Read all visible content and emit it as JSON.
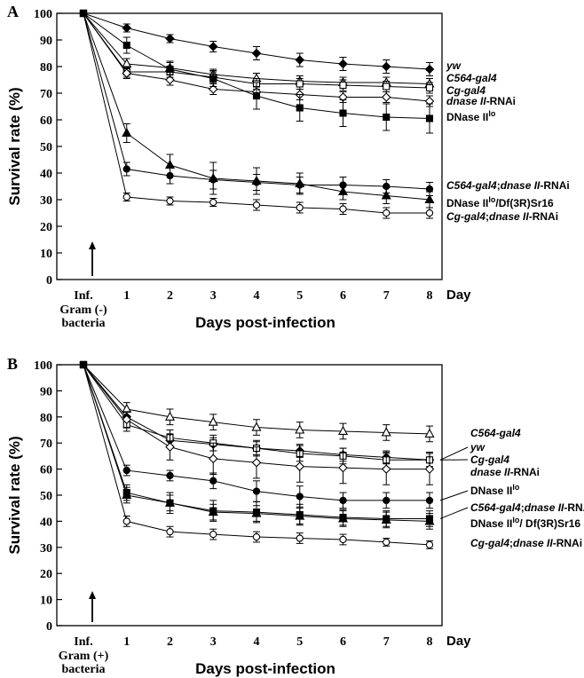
{
  "figure": {
    "panels": [
      {
        "letter": "A",
        "xlabel": "Days post-infection",
        "ylabel": "Survival rate (%)",
        "day_label": "Day",
        "inf_label": "Inf.",
        "bacteria_label": [
          "Gram (-)",
          "bacteria"
        ]
      },
      {
        "letter": "B",
        "xlabel": "Days post-infection",
        "ylabel": "Survival rate (%)",
        "day_label": "Day",
        "inf_label": "Inf.",
        "bacteria_label": [
          "Gram (+)",
          "bacteria"
        ]
      }
    ]
  },
  "chart_data": [
    {
      "type": "line",
      "panel": "A",
      "title": "",
      "xlabel": "Days post-infection",
      "ylabel": "Survival rate (%)",
      "x": [
        0,
        1,
        2,
        3,
        4,
        5,
        6,
        7,
        8
      ],
      "x_tick_labels": [
        "Inf.",
        "1",
        "2",
        "3",
        "4",
        "5",
        "6",
        "7",
        "8"
      ],
      "ylim": [
        0,
        100
      ],
      "y_ticks": [
        0,
        10,
        20,
        30,
        40,
        50,
        60,
        70,
        80,
        90,
        100
      ],
      "grid": false,
      "legend": "right-side labels",
      "series": [
        {
          "name": "yw",
          "label_parts": [
            {
              "t": "yw",
              "i": true
            }
          ],
          "marker": "diamond",
          "fill": "filled",
          "values": [
            100,
            94.5,
            90.5,
            87.5,
            85,
            82.5,
            81,
            80,
            79
          ],
          "errors": [
            0,
            1.5,
            1.5,
            2,
            2.5,
            2.5,
            2.5,
            2.5,
            2.5
          ]
        },
        {
          "name": "C564-gal4",
          "label_parts": [
            {
              "t": "C564-gal4",
              "i": true
            }
          ],
          "marker": "triangle",
          "fill": "open",
          "values": [
            100,
            81,
            79.5,
            77,
            75.5,
            74.5,
            74,
            74,
            73.5
          ],
          "errors": [
            0,
            2,
            2,
            2,
            2,
            2,
            2,
            2,
            2
          ]
        },
        {
          "name": "Cg-gal4",
          "label_parts": [
            {
              "t": "Cg-gal4",
              "i": true
            }
          ],
          "marker": "square",
          "fill": "open",
          "values": [
            100,
            78,
            78,
            76,
            73.5,
            73.5,
            73,
            72.5,
            72
          ],
          "errors": [
            0,
            2,
            2,
            2,
            2,
            2,
            2,
            2,
            2
          ]
        },
        {
          "name": "dnase II-RNAi",
          "label_parts": [
            {
              "t": "dnase II",
              "i": true
            },
            {
              "t": "-RNAi",
              "i": false
            }
          ],
          "marker": "diamond",
          "fill": "open",
          "values": [
            100,
            77.5,
            75,
            71.5,
            70.5,
            69.5,
            68.5,
            68.5,
            67
          ],
          "errors": [
            0,
            2,
            2,
            2,
            2,
            2,
            2,
            2,
            2
          ]
        },
        {
          "name": "DNase IIlo",
          "label_parts": [
            {
              "t": "DNase II",
              "i": false
            },
            {
              "t": "lo",
              "i": false,
              "sup": true
            }
          ],
          "marker": "square",
          "fill": "filled",
          "values": [
            100,
            88,
            79,
            75.5,
            69,
            64.5,
            62.5,
            61,
            60.5
          ],
          "errors": [
            0,
            3,
            3,
            3,
            5,
            5,
            5,
            5,
            5.5
          ]
        },
        {
          "name": "C564-gal4;dnase II-RNAi",
          "label_parts": [
            {
              "t": "C564-gal4",
              "i": true
            },
            {
              "t": ";",
              "i": false
            },
            {
              "t": "dnase II",
              "i": true
            },
            {
              "t": "-RNAi",
              "i": false
            }
          ],
          "marker": "circle",
          "fill": "filled",
          "values": [
            100,
            41.5,
            39,
            37.5,
            36.5,
            35.5,
            35.5,
            35,
            34
          ],
          "errors": [
            0,
            2.5,
            3,
            3.5,
            3,
            3,
            3,
            2.5,
            2.5
          ]
        },
        {
          "name": "DNase IIlo/Df(3R)Sr16",
          "label_parts": [
            {
              "t": "DNase II",
              "i": false
            },
            {
              "t": "lo",
              "i": false,
              "sup": true
            },
            {
              "t": "/Df(3R)Sr16",
              "i": false
            }
          ],
          "marker": "triangle",
          "fill": "filled",
          "values": [
            100,
            55,
            43,
            38,
            37,
            36,
            33,
            31.5,
            30
          ],
          "errors": [
            0,
            3.5,
            4,
            6,
            5,
            4,
            3,
            3,
            3
          ]
        },
        {
          "name": "Cg-gal4;dnase II-RNAi",
          "label_parts": [
            {
              "t": "Cg-gal4",
              "i": true
            },
            {
              "t": ";",
              "i": false
            },
            {
              "t": "dnase II",
              "i": true
            },
            {
              "t": "-RNAi",
              "i": false
            }
          ],
          "marker": "circle",
          "fill": "open",
          "values": [
            100,
            31,
            29.5,
            29,
            28,
            27,
            26.5,
            25,
            25
          ],
          "errors": [
            0,
            1.5,
            1.5,
            1.5,
            2,
            2,
            2,
            2,
            2
          ]
        }
      ]
    },
    {
      "type": "line",
      "panel": "B",
      "title": "",
      "xlabel": "Days post-infection",
      "ylabel": "Survival rate (%)",
      "x": [
        0,
        1,
        2,
        3,
        4,
        5,
        6,
        7,
        8
      ],
      "x_tick_labels": [
        "Inf.",
        "1",
        "2",
        "3",
        "4",
        "5",
        "6",
        "7",
        "8"
      ],
      "ylim": [
        0,
        100
      ],
      "y_ticks": [
        0,
        10,
        20,
        30,
        40,
        50,
        60,
        70,
        80,
        90,
        100
      ],
      "grid": false,
      "legend": "right-side labels",
      "series": [
        {
          "name": "C564-gal4",
          "label_parts": [
            {
              "t": "C564-gal4",
              "i": true
            }
          ],
          "marker": "triangle",
          "fill": "open",
          "values": [
            100,
            83,
            80,
            78,
            76,
            75,
            74.5,
            74,
            73.5
          ],
          "errors": [
            0,
            2.5,
            3,
            3,
            3,
            3,
            3,
            3,
            3
          ]
        },
        {
          "name": "yw",
          "label_parts": [
            {
              "t": "yw",
              "i": true
            }
          ],
          "marker": "diamond",
          "fill": "filled",
          "values": [
            100,
            80,
            71,
            69.5,
            68,
            67,
            65.5,
            64.5,
            63.5
          ],
          "errors": [
            0,
            2,
            2.5,
            2.5,
            2.5,
            2.5,
            2.5,
            2.5,
            2.5
          ]
        },
        {
          "name": "Cg-gal4",
          "label_parts": [
            {
              "t": "Cg-gal4",
              "i": true
            }
          ],
          "marker": "square",
          "fill": "open",
          "values": [
            100,
            77,
            72,
            70,
            68,
            66,
            65,
            63.5,
            63.5
          ],
          "errors": [
            0,
            2.5,
            3,
            3,
            3,
            3,
            3,
            3,
            3
          ]
        },
        {
          "name": "dnase II-RNAi",
          "label_parts": [
            {
              "t": "dnase II",
              "i": true
            },
            {
              "t": "-RNAi",
              "i": false
            }
          ],
          "marker": "diamond",
          "fill": "open",
          "values": [
            100,
            79,
            68.5,
            64,
            62.5,
            61,
            60.5,
            60,
            60
          ],
          "errors": [
            0,
            3,
            5,
            6,
            6,
            6,
            6,
            6,
            6
          ]
        },
        {
          "name": "DNase IIlo",
          "label_parts": [
            {
              "t": "DNase II",
              "i": false
            },
            {
              "t": "lo",
              "i": false,
              "sup": true
            }
          ],
          "marker": "circle",
          "fill": "filled",
          "values": [
            100,
            59.5,
            57.5,
            55.5,
            51.5,
            49.5,
            48,
            48,
            48
          ],
          "errors": [
            0,
            2,
            2,
            3,
            4,
            4,
            3,
            3,
            3
          ]
        },
        {
          "name": "C564-gal4;dnase II-RNAi",
          "label_parts": [
            {
              "t": "C564-gal4",
              "i": true
            },
            {
              "t": ";",
              "i": false
            },
            {
              "t": "dnase II",
              "i": true
            },
            {
              "t": "-RNAi",
              "i": false
            }
          ],
          "marker": "square",
          "fill": "filled",
          "values": [
            100,
            51,
            47,
            44,
            43.5,
            42.5,
            41.5,
            41,
            41
          ],
          "errors": [
            0,
            3,
            4,
            4,
            4,
            4,
            3,
            3,
            3
          ]
        },
        {
          "name": "DNase IIlo/ Df(3R)Sr16",
          "label_parts": [
            {
              "t": "DNase II",
              "i": false
            },
            {
              "t": "lo",
              "i": false,
              "sup": true
            },
            {
              "t": "/ Df(3R)Sr16",
              "i": false
            }
          ],
          "marker": "triangle",
          "fill": "filled",
          "values": [
            100,
            50,
            47,
            43.5,
            43,
            42,
            41,
            40.5,
            40
          ],
          "errors": [
            0,
            3,
            3,
            3,
            3,
            3,
            3,
            3,
            3
          ]
        },
        {
          "name": "Cg-gal4;dnase II-RNAi",
          "label_parts": [
            {
              "t": "Cg-gal4",
              "i": true
            },
            {
              "t": ";",
              "i": false
            },
            {
              "t": "dnase II",
              "i": true
            },
            {
              "t": "-RNAi",
              "i": false
            }
          ],
          "marker": "circle",
          "fill": "open",
          "values": [
            100,
            40,
            36,
            35,
            34,
            33.5,
            33,
            32,
            31
          ],
          "errors": [
            0,
            2,
            2,
            2,
            2,
            2,
            2,
            1.5,
            1.5
          ]
        }
      ]
    }
  ]
}
